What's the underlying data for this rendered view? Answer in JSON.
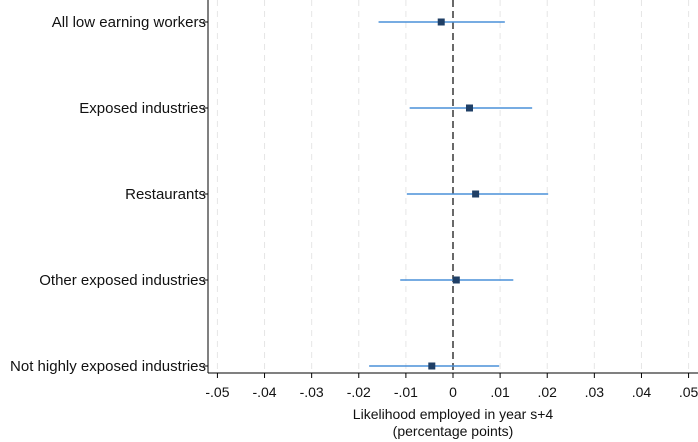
{
  "chart_data": {
    "type": "scatter",
    "subtype": "coefficient-plot-with-confidence-intervals",
    "orientation": "horizontal",
    "categories": [
      "All low earning workers",
      "Exposed industries",
      "Restaurants",
      "Other exposed industries",
      "Not highly exposed industries"
    ],
    "estimates": [
      -0.0025,
      0.0035,
      0.0048,
      0.0007,
      -0.0045
    ],
    "ci_low": [
      -0.0158,
      -0.0092,
      -0.0098,
      -0.0112,
      -0.0178
    ],
    "ci_high": [
      0.011,
      0.0168,
      0.0202,
      0.0128,
      0.0098
    ],
    "xlim": [
      -0.052,
      0.052
    ],
    "xticks": [
      -0.05,
      -0.04,
      -0.03,
      -0.02,
      -0.01,
      0,
      0.01,
      0.02,
      0.03,
      0.04,
      0.05
    ],
    "xtick_labels": [
      "-.05",
      "-.04",
      "-.03",
      "-.02",
      "-.01",
      "0",
      ".01",
      ".02",
      ".03",
      ".04",
      ".05"
    ],
    "xlabel_line1": "Likelihood employed in year s+4",
    "xlabel_line2": "(percentage points)",
    "reference_line": 0,
    "grid": "vertical dashed",
    "colors": {
      "ci_line": "#4a90d9",
      "marker": "#1f3f66",
      "reference_line": "#444444",
      "grid": "#e6e6e6",
      "axis": "#000000"
    }
  }
}
